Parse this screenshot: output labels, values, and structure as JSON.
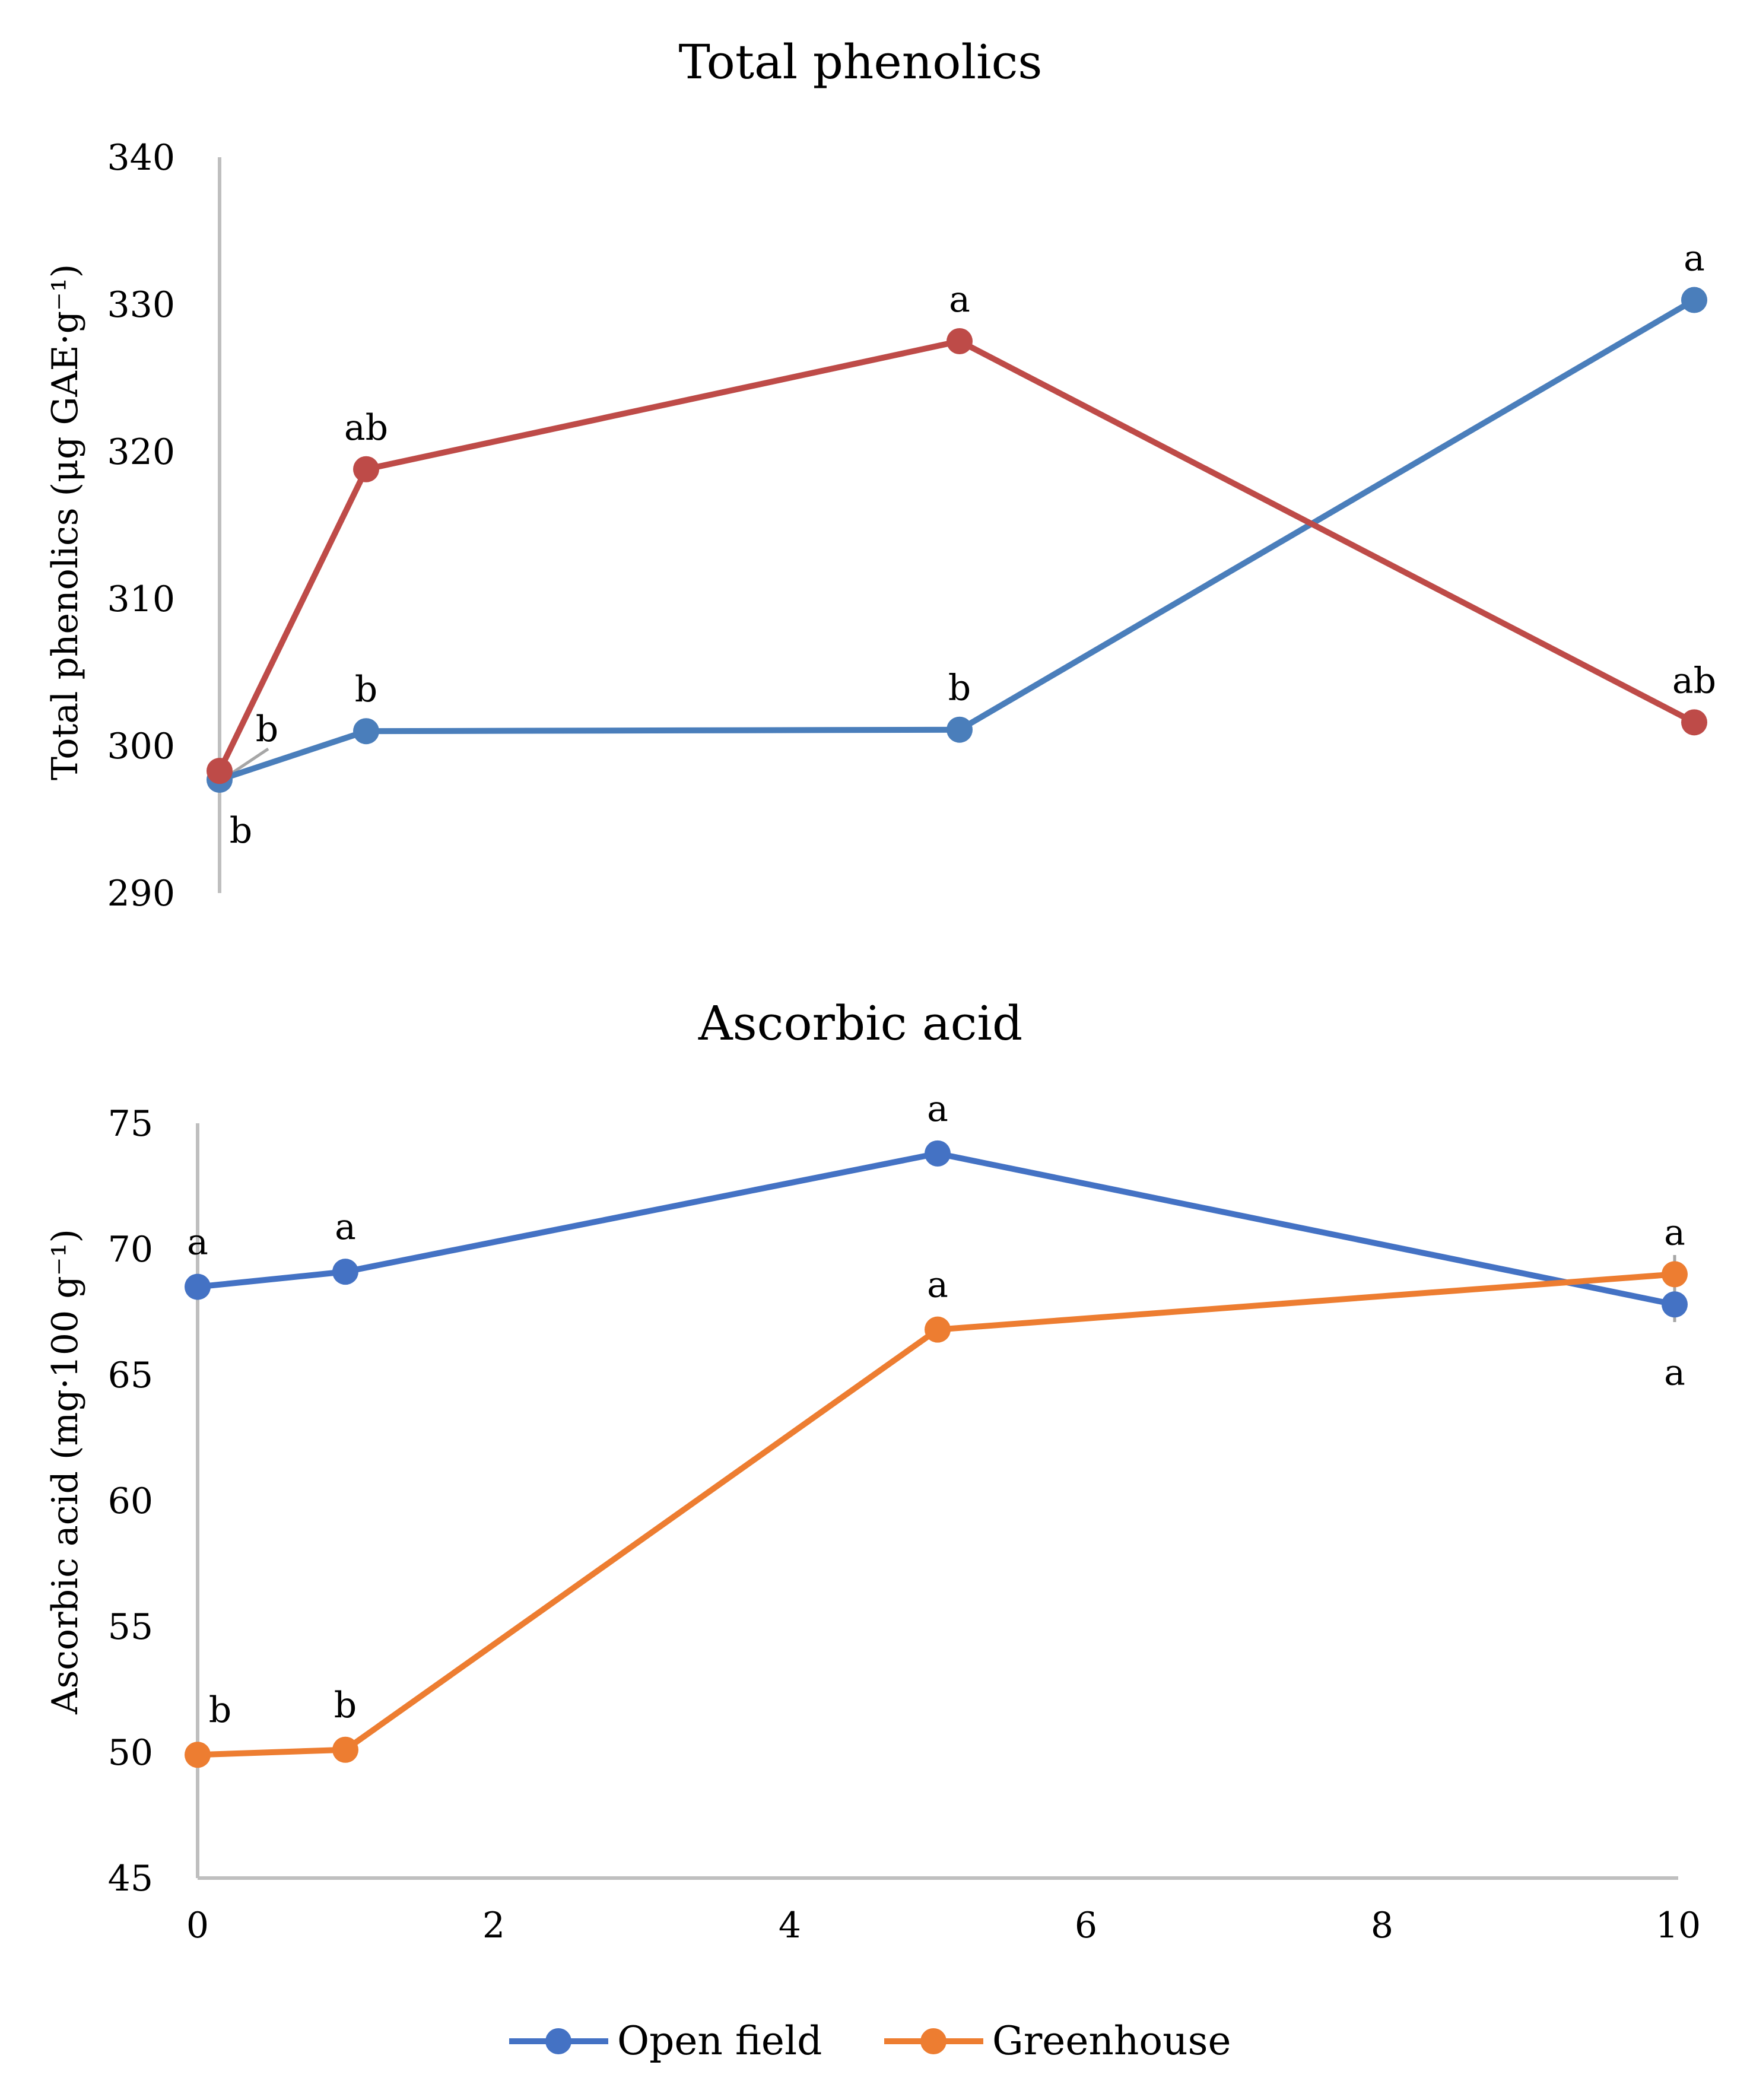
{
  "chart_data": [
    {
      "type": "line",
      "title": "Total phenolics",
      "xlabel": "",
      "ylabel": "Total phenolics (μg GAE·g⁻¹)",
      "ylim": [
        290,
        340
      ],
      "yticks": [
        "290",
        "300",
        "310",
        "320",
        "330",
        "340"
      ],
      "xlim": [
        0,
        10
      ],
      "x": [
        0,
        1,
        5,
        10
      ],
      "series": [
        {
          "name": "Open field",
          "color": "#4A7EBB",
          "values": [
            297.7,
            301.0,
            301.1,
            330.3
          ],
          "labels": [
            "b",
            "b",
            "b",
            "a"
          ]
        },
        {
          "name": "Greenhouse",
          "color": "#BE4B48",
          "values": [
            298.3,
            318.8,
            327.5,
            301.6
          ],
          "labels": [
            "b",
            "ab",
            "a",
            "ab"
          ]
        }
      ]
    },
    {
      "type": "line",
      "title": "Ascorbic acid",
      "xlabel": "",
      "ylabel": "Ascorbic acid (mg·100 g⁻¹)",
      "ylim": [
        45,
        75
      ],
      "yticks": [
        "45",
        "50",
        "55",
        "60",
        "65",
        "70",
        "75"
      ],
      "xlim": [
        0,
        10
      ],
      "xticks": [
        "0",
        "2",
        "4",
        "6",
        "8",
        "10"
      ],
      "x": [
        0,
        1,
        5,
        10
      ],
      "series": [
        {
          "name": "Open field",
          "color": "#4472C4",
          "values": [
            68.5,
            69.1,
            73.8,
            67.8
          ],
          "labels": [
            "a",
            "a",
            "a",
            "a"
          ]
        },
        {
          "name": "Greenhouse",
          "color": "#ED7D31",
          "values": [
            49.9,
            50.1,
            66.8,
            69.0
          ],
          "labels": [
            "b",
            "b",
            "a",
            "a"
          ]
        }
      ]
    }
  ],
  "legend": [
    {
      "label": "Open field",
      "color": "#4472C4"
    },
    {
      "label": "Greenhouse",
      "color": "#ED7D31"
    }
  ]
}
